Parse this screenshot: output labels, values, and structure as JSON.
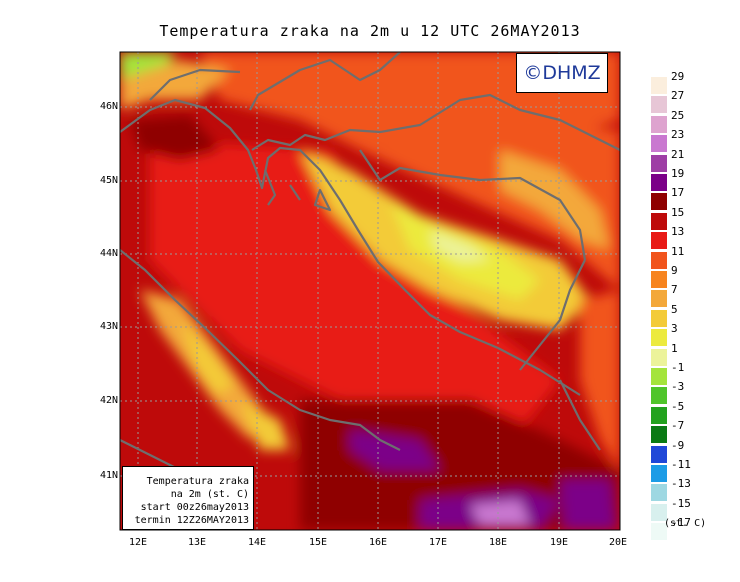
{
  "title": "Temperatura zraka na 2m u 12 UTC 26MAY2013",
  "logo": "©DHMZ",
  "info_box": {
    "line1": "Temperatura zraka",
    "line2": "na 2m (st. C)",
    "line3": "start 00z26may2013",
    "line4": "termin 12Z26MAY2013"
  },
  "latitude_labels": [
    "46N",
    "45N",
    "44N",
    "43N",
    "42N",
    "41N"
  ],
  "longitude_labels": [
    "12E",
    "13E",
    "14E",
    "15E",
    "16E",
    "17E",
    "18E",
    "19E",
    "20E"
  ],
  "legend": {
    "labels": [
      "29",
      "27",
      "25",
      "23",
      "21",
      "19",
      "17",
      "15",
      "13",
      "11",
      "9",
      "7",
      "5",
      "3",
      "1",
      "-1",
      "-3",
      "-5",
      "-7",
      "-9",
      "-11",
      "-13",
      "-15",
      "-17"
    ],
    "colors": [
      "#fbeedd",
      "#e7c6d6",
      "#dea3cf",
      "#c978d0",
      "#9e3ea5",
      "#7b0088",
      "#8f0000",
      "#be0a0a",
      "#e81a16",
      "#f1541c",
      "#f7841e",
      "#f3a83a",
      "#f3cb38",
      "#ecea3e",
      "#ecf39a",
      "#a4e43b",
      "#4fc52a",
      "#22a21e",
      "#0a7a14",
      "#2048d8",
      "#1c9ce6",
      "#9ed8e2",
      "#d8f0ee",
      "#eefaf6"
    ],
    "units": "(st. C)"
  }
}
